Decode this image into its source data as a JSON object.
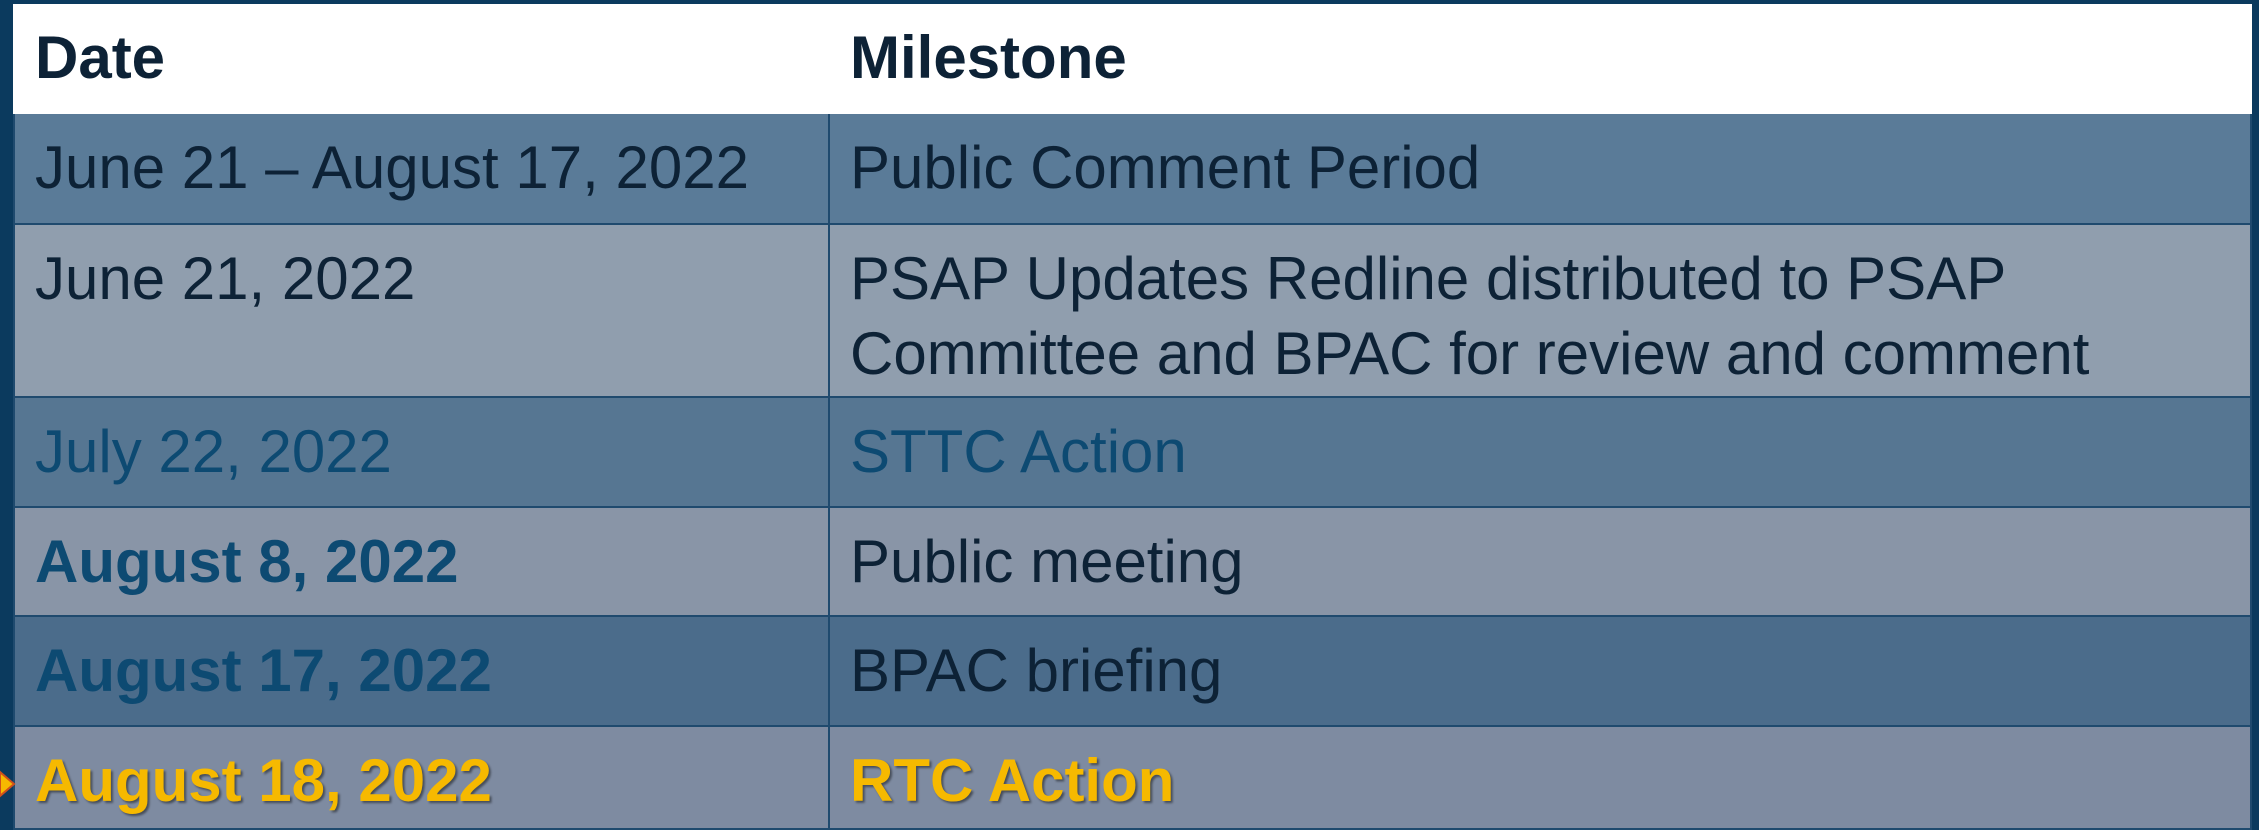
{
  "table": {
    "header": [
      "Date",
      "Milestone"
    ],
    "rows": [
      [
        "June 21 – August 17, 2022",
        "Public Comment Period"
      ],
      [
        "June 21, 2022",
        "PSAP Updates Redline distributed to PSAP Committee and BPAC for review and comment"
      ],
      [
        "July 22, 2022",
        "STTC Action"
      ],
      [
        "August 8, 2022",
        "Public meeting"
      ],
      [
        "August 17, 2022",
        "BPAC briefing"
      ],
      [
        "August 18, 2022",
        "RTC Action"
      ]
    ]
  }
}
